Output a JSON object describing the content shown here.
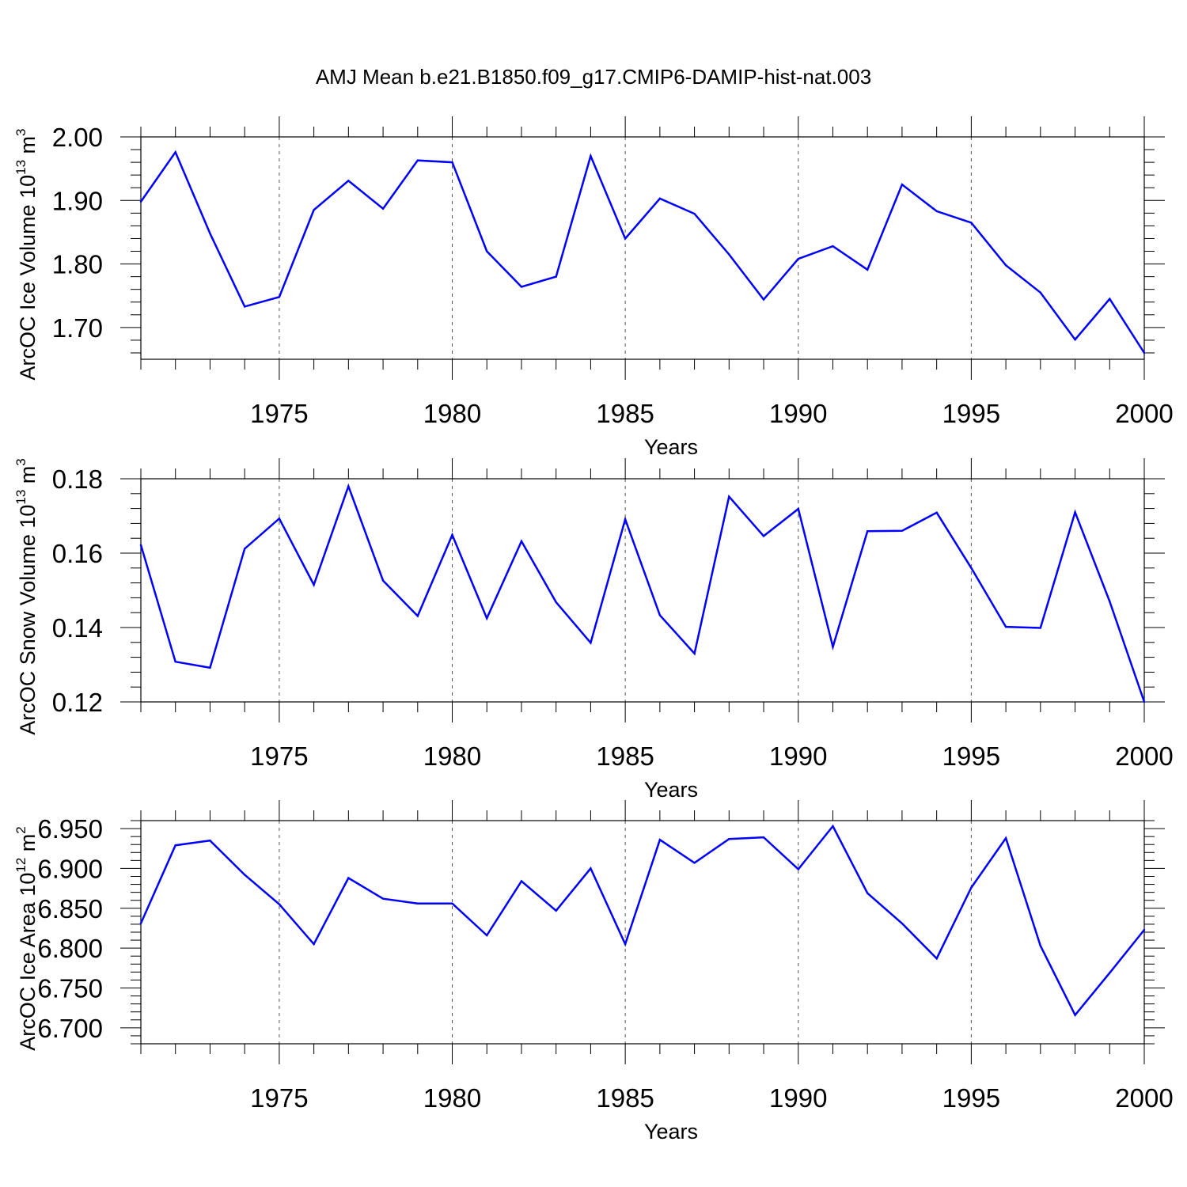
{
  "figure": {
    "title": "AMJ Mean b.e21.B1850.f09_g17.CMIP6-DAMIP-hist-nat.003"
  },
  "colors": {
    "series": "#0000ff",
    "frame": "#000000",
    "grid": "#555555"
  },
  "chart_data": [
    {
      "type": "line",
      "title": "AMJ Mean b.e21.B1850.f09_g17.CMIP6-DAMIP-hist-nat.003",
      "xlabel": "Years",
      "ylabel": {
        "text": "ArcOC Ice Volume 10",
        "sup1": "13",
        "mid": " m",
        "sup2": "3"
      },
      "xlim": [
        1971,
        2000
      ],
      "ylim": [
        1.65,
        2.0
      ],
      "xticks": [
        1975,
        1980,
        1985,
        1990,
        1995,
        2000
      ],
      "yticks": [
        1.7,
        1.8,
        1.9,
        2.0
      ],
      "ytick_labels": [
        "1.70",
        "1.80",
        "1.90",
        "2.00"
      ],
      "yminor_step": 0.02,
      "grid": "vertical dashed at major x ticks",
      "x": [
        1971,
        1972,
        1973,
        1974,
        1975,
        1976,
        1977,
        1978,
        1979,
        1980,
        1981,
        1982,
        1983,
        1984,
        1985,
        1986,
        1987,
        1988,
        1989,
        1990,
        1991,
        1992,
        1993,
        1994,
        1995,
        1996,
        1997,
        1998,
        1999,
        2000
      ],
      "values": [
        1.898,
        1.976,
        1.848,
        1.733,
        1.748,
        1.885,
        1.931,
        1.887,
        1.963,
        1.96,
        1.82,
        1.764,
        1.78,
        1.97,
        1.84,
        1.903,
        1.879,
        1.815,
        1.744,
        1.808,
        1.828,
        1.791,
        1.925,
        1.883,
        1.865,
        1.798,
        1.755,
        1.681,
        1.745,
        1.66
      ]
    },
    {
      "type": "line",
      "xlabel": "Years",
      "ylabel": {
        "text": "ArcOC Snow Volume 10",
        "sup1": "13",
        "mid": " m",
        "sup2": "3"
      },
      "xlim": [
        1971,
        2000
      ],
      "ylim": [
        0.12,
        0.18
      ],
      "xticks": [
        1975,
        1980,
        1985,
        1990,
        1995,
        2000
      ],
      "yticks": [
        0.12,
        0.14,
        0.16,
        0.18
      ],
      "ytick_labels": [
        "0.12",
        "0.14",
        "0.16",
        "0.18"
      ],
      "yminor_step": 0.004,
      "grid": "vertical dashed at major x ticks",
      "x": [
        1971,
        1972,
        1973,
        1974,
        1975,
        1976,
        1977,
        1978,
        1979,
        1980,
        1981,
        1982,
        1983,
        1984,
        1985,
        1986,
        1987,
        1988,
        1989,
        1990,
        1991,
        1992,
        1993,
        1994,
        1995,
        1996,
        1997,
        1998,
        1999,
        2000
      ],
      "values": [
        0.1622,
        0.1308,
        0.1292,
        0.1612,
        0.1693,
        0.1515,
        0.178,
        0.1526,
        0.1431,
        0.1649,
        0.1425,
        0.1632,
        0.1468,
        0.1359,
        0.1691,
        0.1433,
        0.133,
        0.1752,
        0.1646,
        0.1719,
        0.1348,
        0.1659,
        0.166,
        0.1709,
        0.156,
        0.1402,
        0.1399,
        0.171,
        0.147,
        0.12
      ]
    },
    {
      "type": "line",
      "xlabel": "Years",
      "ylabel": {
        "text": "ArcOC Ice Area 10",
        "sup1": "12",
        "mid": " m",
        "sup2": "2"
      },
      "xlim": [
        1971,
        2000
      ],
      "ylim": [
        6.68,
        6.96
      ],
      "xticks": [
        1975,
        1980,
        1985,
        1990,
        1995,
        2000
      ],
      "yticks": [
        6.7,
        6.75,
        6.8,
        6.85,
        6.9,
        6.95
      ],
      "ytick_labels": [
        "6.700",
        "6.750",
        "6.800",
        "6.850",
        "6.900",
        "6.950"
      ],
      "yminor_step": 0.01,
      "grid": "vertical dashed at major x ticks",
      "x": [
        1971,
        1972,
        1973,
        1974,
        1975,
        1976,
        1977,
        1978,
        1979,
        1980,
        1981,
        1982,
        1983,
        1984,
        1985,
        1986,
        1987,
        1988,
        1989,
        1990,
        1991,
        1992,
        1993,
        1994,
        1995,
        1996,
        1997,
        1998,
        1999,
        2000
      ],
      "values": [
        6.831,
        6.929,
        6.935,
        6.892,
        6.855,
        6.805,
        6.888,
        6.862,
        6.856,
        6.856,
        6.816,
        6.884,
        6.847,
        6.9,
        6.805,
        6.936,
        6.907,
        6.937,
        6.939,
        6.899,
        6.953,
        6.869,
        6.831,
        6.787,
        6.876,
        6.938,
        6.803,
        6.716,
        6.769,
        6.823
      ]
    }
  ]
}
